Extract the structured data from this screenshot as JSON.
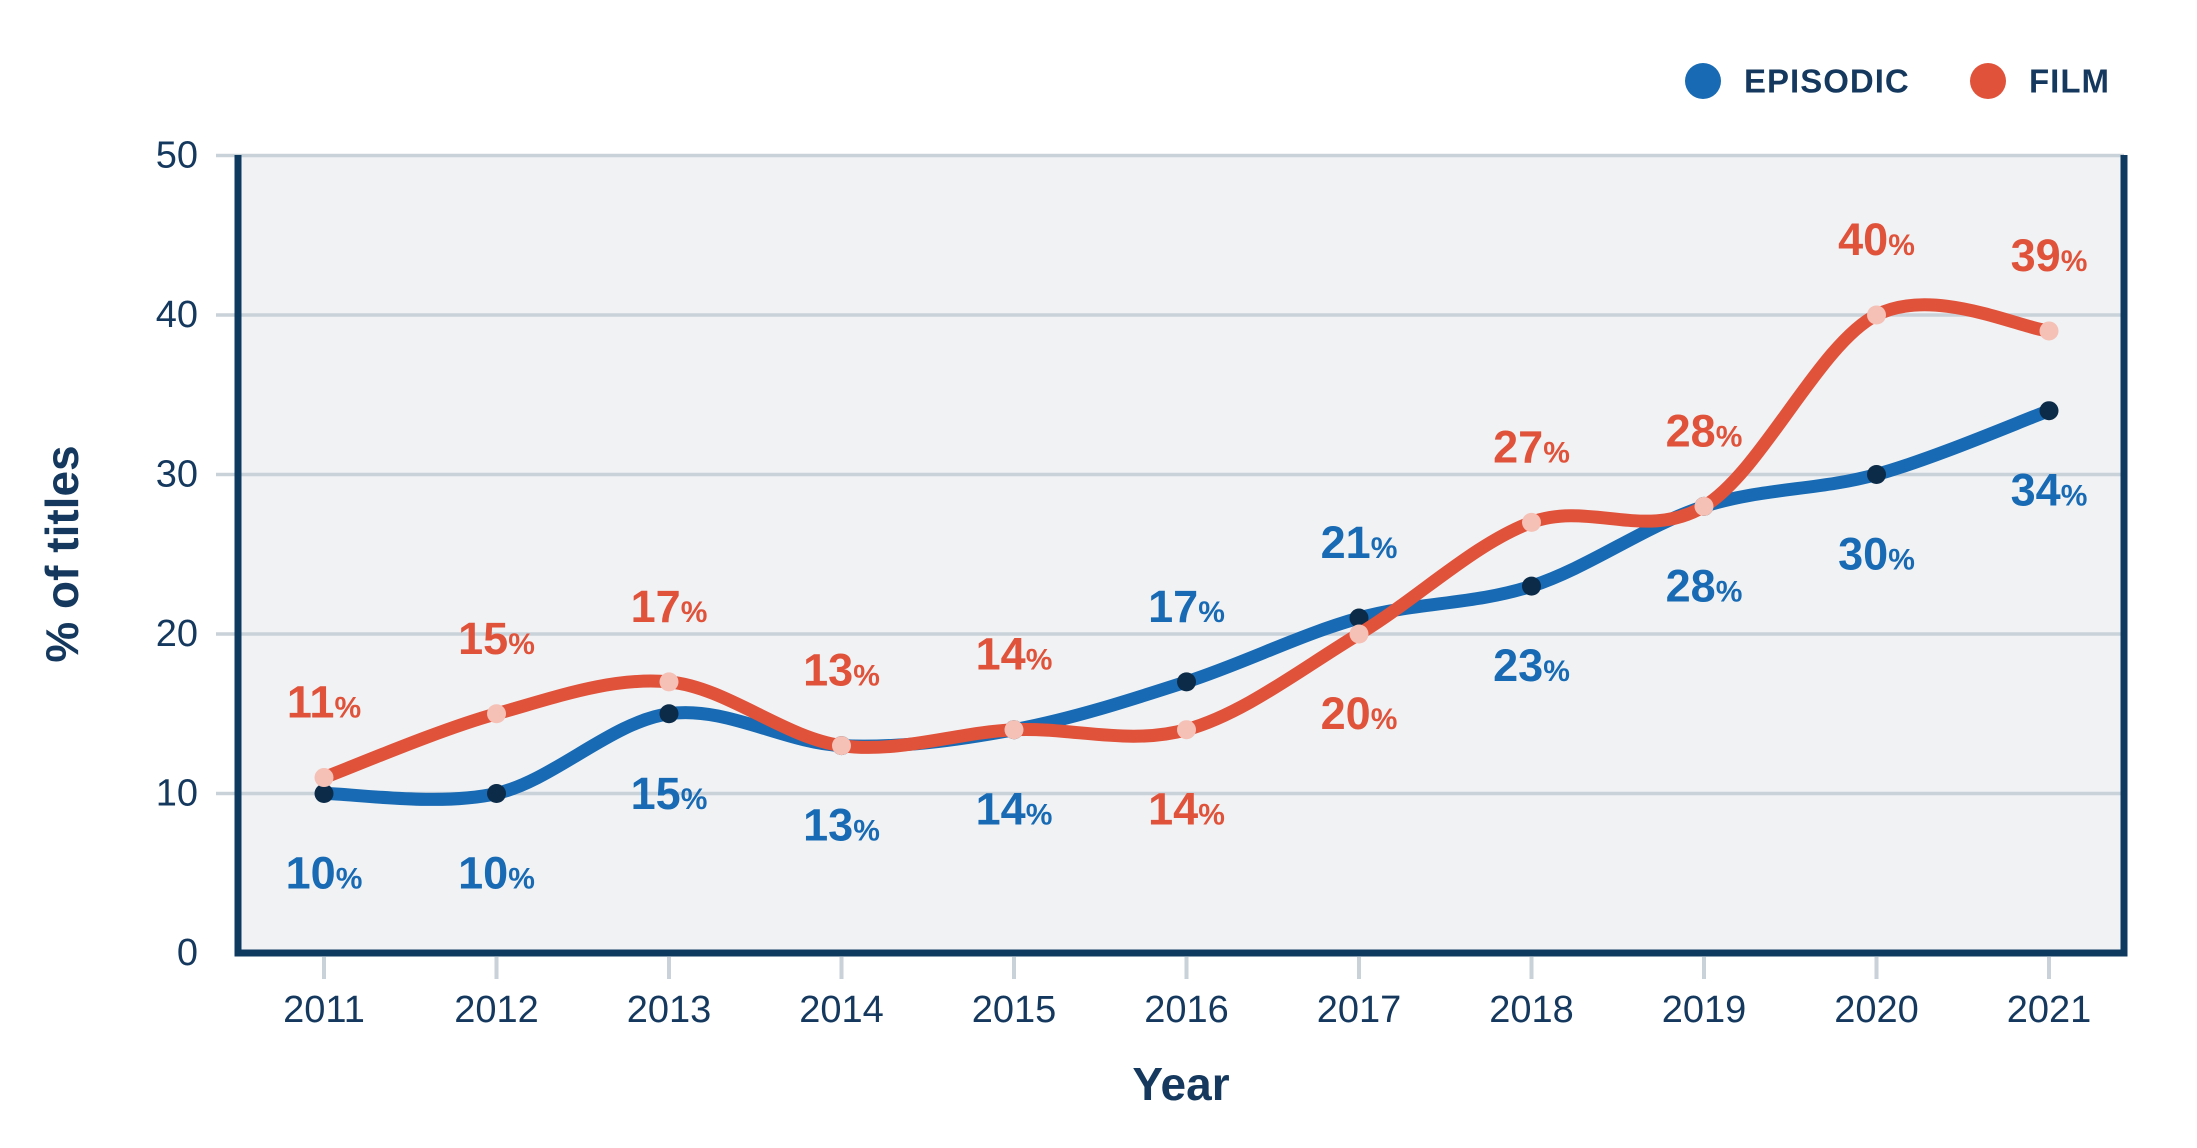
{
  "chart_data": {
    "type": "line",
    "title": "",
    "x": [
      2011,
      2012,
      2013,
      2014,
      2015,
      2016,
      2017,
      2018,
      2019,
      2020,
      2021
    ],
    "xlabel": "Year",
    "ylabel": "% of titles",
    "ylim": [
      0,
      50
    ],
    "yticks": [
      0,
      10,
      20,
      30,
      40,
      50
    ],
    "grid": true,
    "legend_position": "top-right",
    "value_suffix": "%",
    "series": [
      {
        "name": "EPISODIC",
        "color": "#176ab3",
        "marker_color": "#0c2b48",
        "values": [
          10,
          10,
          15,
          13,
          14,
          17,
          21,
          23,
          28,
          30,
          34
        ],
        "label_side": [
          "below",
          "below",
          "below",
          "below",
          "below",
          "above",
          "above",
          "below",
          "below",
          "below",
          "below"
        ]
      },
      {
        "name": "FILM",
        "color": "#e0523a",
        "marker_color": "#f5c0b5",
        "values": [
          11,
          15,
          17,
          13,
          14,
          14,
          20,
          27,
          28,
          40,
          39
        ],
        "label_side": [
          "above",
          "above",
          "above",
          "above",
          "above",
          "below",
          "below",
          "above",
          "above",
          "above",
          "above"
        ]
      }
    ]
  },
  "style": {
    "axis_color": "#0f3a5f",
    "text_color": "#15395e",
    "grid_color": "#c9d1d9",
    "plot_bg": "#f0f2f4",
    "page_bg": "#ffffff"
  }
}
